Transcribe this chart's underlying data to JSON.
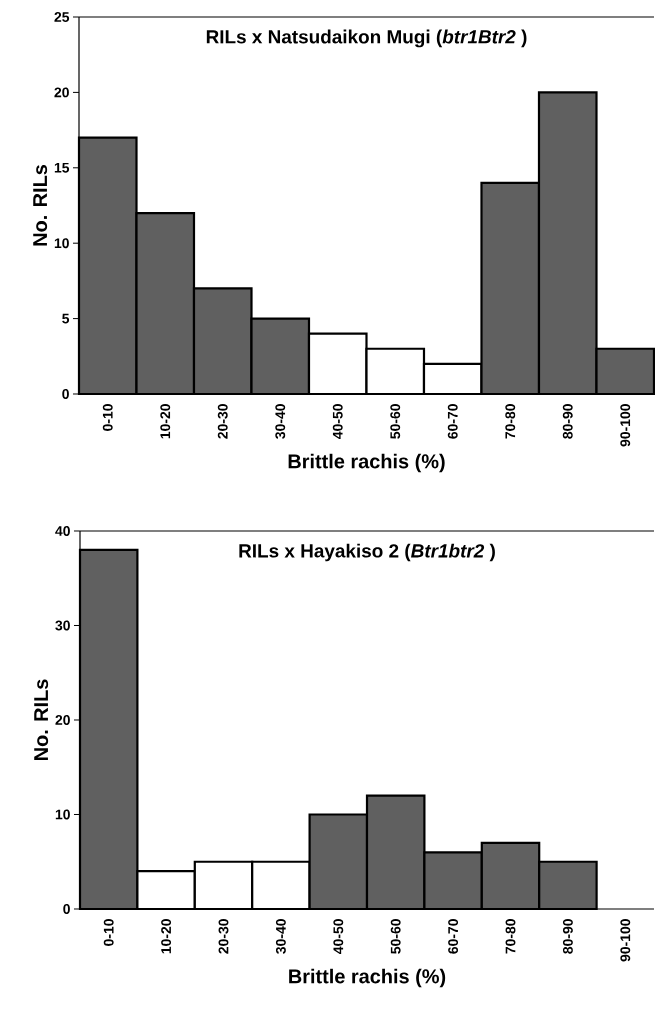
{
  "chart_data": [
    {
      "type": "bar",
      "title": "RILs x Natsudaikon Mugi (*btr1Btr2* )",
      "xlabel": "Brittle rachis (%)",
      "ylabel": "No. RILs",
      "categories": [
        "0-10",
        "10-20",
        "20-30",
        "30-40",
        "40-50",
        "50-60",
        "60-70",
        "70-80",
        "80-90",
        "90-100"
      ],
      "values": [
        17,
        12,
        7,
        5,
        4,
        3,
        2,
        14,
        20,
        3
      ],
      "colors": [
        "#606060",
        "#606060",
        "#606060",
        "#606060",
        "#ffffff",
        "#ffffff",
        "#ffffff",
        "#606060",
        "#606060",
        "#606060"
      ],
      "ylim": [
        0,
        25
      ],
      "yticks": [
        0,
        5,
        10,
        15,
        20,
        25
      ],
      "grid": false
    },
    {
      "type": "bar",
      "title": "RILs x Hayakiso 2 (*Btr1btr2* )",
      "xlabel": "Brittle rachis (%)",
      "ylabel": "No. RILs",
      "categories": [
        "0-10",
        "10-20",
        "20-30",
        "30-40",
        "40-50",
        "50-60",
        "60-70",
        "70-80",
        "80-90",
        "90-100"
      ],
      "values": [
        38,
        4,
        5,
        5,
        10,
        12,
        6,
        7,
        5,
        null
      ],
      "colors": [
        "#606060",
        "#ffffff",
        "#ffffff",
        "#ffffff",
        "#606060",
        "#606060",
        "#606060",
        "#606060",
        "#606060",
        "#ffffff"
      ],
      "ylim": [
        0,
        40
      ],
      "yticks": [
        0,
        10,
        20,
        30,
        40
      ],
      "grid": false
    }
  ]
}
